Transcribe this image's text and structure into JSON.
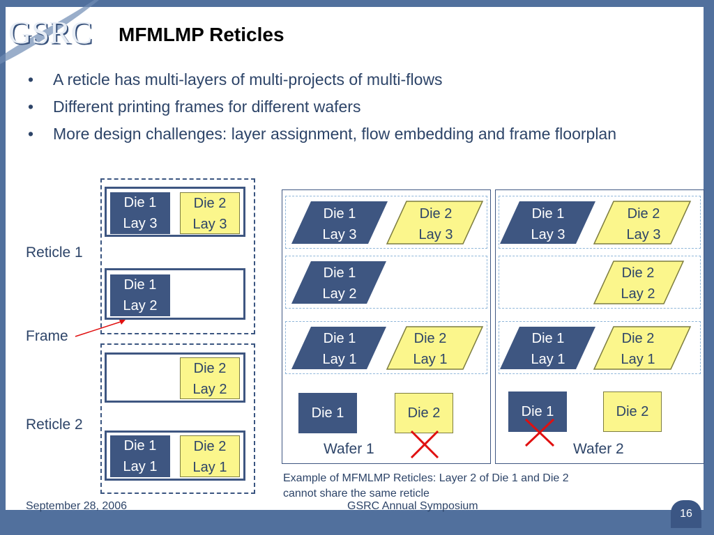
{
  "logo_text": "GSRC",
  "title": "MFMLMP Reticles",
  "bullets": [
    "A reticle has multi-layers of multi-projects of multi-flows",
    "Different printing frames for different wafers",
    "More design challenges: layer assignment, flow embedding and frame floorplan"
  ],
  "left": {
    "reticle1_label": "Reticle 1",
    "frame_label": "Frame",
    "reticle2_label": "Reticle 2",
    "r1_f1_die1": [
      "Die 1",
      "Lay 3"
    ],
    "r1_f1_die2": [
      "Die 2",
      "Lay 3"
    ],
    "r1_f2_die1": [
      "Die 1",
      "Lay 2"
    ],
    "r2_f1_die2": [
      "Die 2",
      "Lay 2"
    ],
    "r2_f2_die1": [
      "Die 1",
      "Lay 1"
    ],
    "r2_f2_die2": [
      "Die 2",
      "Lay 1"
    ]
  },
  "wafer1": {
    "label": "Wafer 1",
    "row1": [
      [
        "Die 1",
        "Lay 3"
      ],
      [
        "Die 2",
        "Lay 3"
      ]
    ],
    "row2": [
      [
        "Die 1",
        "Lay 2"
      ]
    ],
    "row3": [
      [
        "Die 1",
        "Lay 1"
      ],
      [
        "Die 2",
        "Lay 1"
      ]
    ],
    "die1": "Die 1",
    "die2": "Die 2"
  },
  "wafer2": {
    "label": "Wafer 2",
    "row1": [
      [
        "Die 1",
        "Lay 3"
      ],
      [
        "Die 2",
        "Lay 3"
      ]
    ],
    "row2": [
      [
        "Die 2",
        "Lay 2"
      ]
    ],
    "row3": [
      [
        "Die 1",
        "Lay 1"
      ],
      [
        "Die 2",
        "Lay 1"
      ]
    ],
    "die1": "Die 1",
    "die2": "Die 2"
  },
  "caption": "Example of MFMLMP Reticles: Layer 2 of Die 1 and Die 2 cannot share the same reticle",
  "footer": {
    "date": "September 28, 2006",
    "event": "GSRC Annual Symposium",
    "page": "16"
  },
  "colors": {
    "die1": "#3e5681",
    "die2": "#fbf68c",
    "cross": "#e01010",
    "background": "#51709d"
  }
}
